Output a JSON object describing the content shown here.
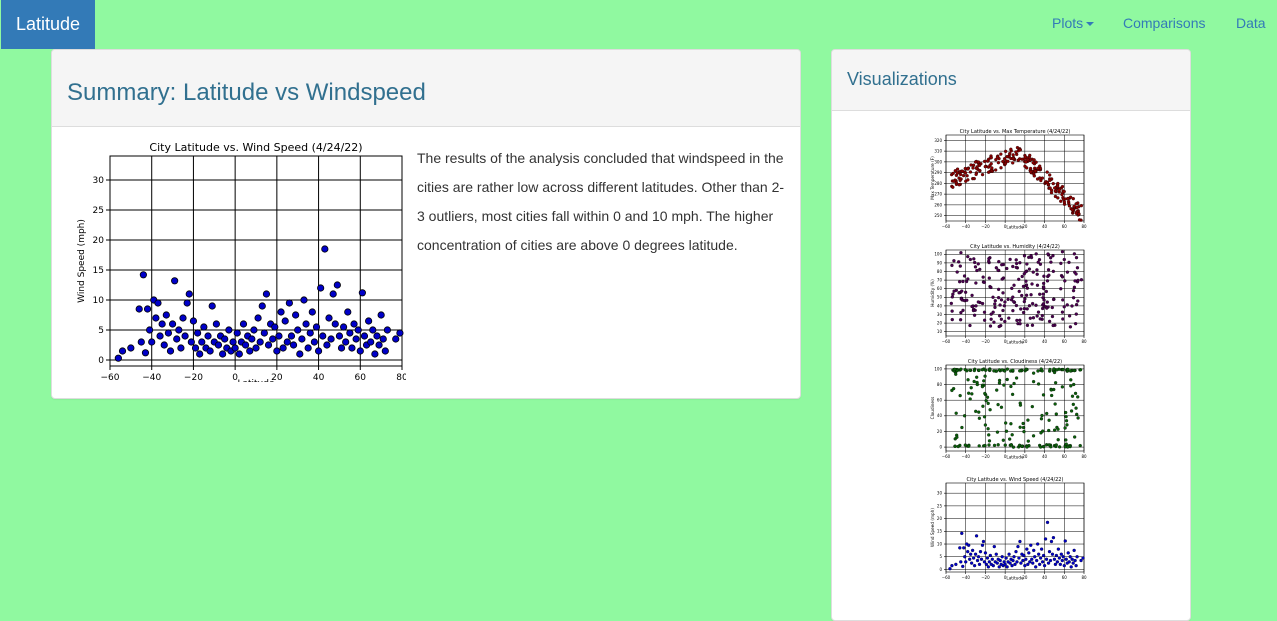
{
  "navbar": {
    "brand": "Latitude",
    "links": [
      {
        "label": "Plots",
        "dropdown": true
      },
      {
        "label": "Comparisons"
      },
      {
        "label": "Data"
      }
    ]
  },
  "summary": {
    "title": "Summary: Latitude vs Windspeed",
    "text": "The results of the analysis concluded that windspeed in the cities are rather low across different latitudes. Other than 2-3 outliers, most cities fall within 0 and 10 mph. The higher concentration of cities are above 0 degrees latitude."
  },
  "visualizations": {
    "title": "Visualizations"
  },
  "colors": {
    "background": "#90f9a0",
    "brand": "#337ab7",
    "heading_text": "#31708f",
    "temp_points": "#8b0000",
    "humidity_points": "#4b0050",
    "cloud_points": "#0b5f0b",
    "wind_points": "#0000c8"
  },
  "chart_data": [
    {
      "type": "scatter",
      "title": "City Latitude vs. Wind Speed (4/24/22)",
      "xlabel": "Latitude",
      "ylabel": "Wind Speed (mph)",
      "xlim": [
        -60,
        80
      ],
      "ylim": [
        -1,
        34
      ],
      "xticks": [
        -60,
        -40,
        -20,
        0,
        20,
        40,
        60,
        80
      ],
      "yticks": [
        0,
        5,
        10,
        15,
        20,
        25,
        30
      ],
      "grid": true,
      "points": [
        [
          -56,
          0.3
        ],
        [
          -54,
          1.5
        ],
        [
          -50,
          2
        ],
        [
          -46,
          8.5
        ],
        [
          -45,
          3
        ],
        [
          -44,
          14.2
        ],
        [
          -43,
          1.2
        ],
        [
          -42,
          8.5
        ],
        [
          -41,
          5
        ],
        [
          -40,
          3
        ],
        [
          -39,
          10
        ],
        [
          -38,
          7
        ],
        [
          -37,
          9.5
        ],
        [
          -36,
          4
        ],
        [
          -35,
          6
        ],
        [
          -34,
          2.5
        ],
        [
          -33,
          7.5
        ],
        [
          -32,
          4.5
        ],
        [
          -31,
          1.5
        ],
        [
          -30,
          6
        ],
        [
          -29,
          13.2
        ],
        [
          -28,
          3.5
        ],
        [
          -27,
          5
        ],
        [
          -26,
          2
        ],
        [
          -25,
          7
        ],
        [
          -24,
          4
        ],
        [
          -23,
          9.5
        ],
        [
          -22,
          11
        ],
        [
          -21,
          3
        ],
        [
          -20,
          6.5
        ],
        [
          -19,
          2
        ],
        [
          -18,
          4.5
        ],
        [
          -17,
          1
        ],
        [
          -16,
          3
        ],
        [
          -15,
          5.5
        ],
        [
          -14,
          2
        ],
        [
          -13,
          4
        ],
        [
          -12,
          1.5
        ],
        [
          -11,
          9
        ],
        [
          -10,
          3
        ],
        [
          -9,
          6
        ],
        [
          -8,
          2.5
        ],
        [
          -7,
          4
        ],
        [
          -6,
          1
        ],
        [
          -5,
          3.5
        ],
        [
          -4,
          2
        ],
        [
          -3,
          5
        ],
        [
          -2,
          1.5
        ],
        [
          -1,
          3
        ],
        [
          0,
          2
        ],
        [
          1,
          4.5
        ],
        [
          2,
          1
        ],
        [
          3,
          3
        ],
        [
          4,
          6
        ],
        [
          5,
          2.5
        ],
        [
          6,
          4
        ],
        [
          7,
          1.5
        ],
        [
          8,
          3.5
        ],
        [
          9,
          5
        ],
        [
          10,
          2
        ],
        [
          11,
          7
        ],
        [
          12,
          3
        ],
        [
          13,
          9
        ],
        [
          14,
          4.5
        ],
        [
          15,
          11
        ],
        [
          16,
          2.5
        ],
        [
          17,
          6
        ],
        [
          18,
          3.5
        ],
        [
          19,
          5.5
        ],
        [
          20,
          1.5
        ],
        [
          21,
          4
        ],
        [
          22,
          8
        ],
        [
          23,
          2
        ],
        [
          24,
          6.5
        ],
        [
          25,
          3
        ],
        [
          26,
          9.5
        ],
        [
          27,
          4
        ],
        [
          28,
          2.5
        ],
        [
          29,
          7.5
        ],
        [
          30,
          5
        ],
        [
          31,
          1
        ],
        [
          32,
          3.5
        ],
        [
          33,
          10
        ],
        [
          34,
          6
        ],
        [
          35,
          2
        ],
        [
          36,
          4.5
        ],
        [
          37,
          8
        ],
        [
          38,
          3
        ],
        [
          39,
          5.5
        ],
        [
          40,
          1.5
        ],
        [
          41,
          12
        ],
        [
          42,
          4
        ],
        [
          43,
          18.5
        ],
        [
          44,
          2.5
        ],
        [
          45,
          7
        ],
        [
          46,
          3.5
        ],
        [
          47,
          11
        ],
        [
          48,
          6
        ],
        [
          49,
          12.5
        ],
        [
          50,
          4
        ],
        [
          51,
          2
        ],
        [
          52,
          5.5
        ],
        [
          53,
          3
        ],
        [
          54,
          8
        ],
        [
          55,
          4.5
        ],
        [
          56,
          2
        ],
        [
          57,
          6
        ],
        [
          58,
          3.5
        ],
        [
          59,
          5
        ],
        [
          60,
          1.5
        ],
        [
          61,
          11.2
        ],
        [
          62,
          4
        ],
        [
          63,
          2.5
        ],
        [
          64,
          6.5
        ],
        [
          65,
          3
        ],
        [
          66,
          5
        ],
        [
          67,
          1
        ],
        [
          68,
          4
        ],
        [
          69,
          2.5
        ],
        [
          70,
          7.5
        ],
        [
          71,
          3.5
        ],
        [
          72,
          1.5
        ],
        [
          73,
          5
        ],
        [
          77,
          3.5
        ],
        [
          79,
          4.5
        ]
      ]
    },
    {
      "type": "scatter",
      "title": "City Latitude vs. Max Temperature (4/24/22)",
      "xlabel": "Latitude",
      "ylabel": "Max Temperature (F)",
      "xlim": [
        -60,
        80
      ],
      "ylim": [
        245,
        325
      ],
      "xticks": [
        -60,
        -40,
        -20,
        0,
        20,
        40,
        60,
        80
      ],
      "yticks": [
        250,
        260,
        270,
        280,
        290,
        300,
        310,
        320
      ],
      "grid": true
    },
    {
      "type": "scatter",
      "title": "City Latitude vs. Humidity (4/24/22)",
      "xlabel": "Latitude",
      "ylabel": "Humidity (%)",
      "xlim": [
        -60,
        80
      ],
      "ylim": [
        5,
        105
      ],
      "xticks": [
        -60,
        -40,
        -20,
        0,
        20,
        40,
        60,
        80
      ],
      "yticks": [
        10,
        20,
        30,
        40,
        50,
        60,
        70,
        80,
        90,
        100
      ],
      "grid": true
    },
    {
      "type": "scatter",
      "title": "City Latitude vs. Cloudiness (4/24/22)",
      "xlabel": "Latitude",
      "ylabel": "Cloudiness",
      "xlim": [
        -60,
        80
      ],
      "ylim": [
        -5,
        105
      ],
      "xticks": [
        -60,
        -40,
        -20,
        0,
        20,
        40,
        60,
        80
      ],
      "yticks": [
        0,
        20,
        40,
        60,
        80,
        100
      ],
      "grid": true
    },
    {
      "type": "scatter",
      "title": "City Latitude vs. Wind Speed (4/24/22)",
      "xlabel": "Latitude",
      "ylabel": "Wind Speed (mph)",
      "xlim": [
        -60,
        80
      ],
      "ylim": [
        -1,
        34
      ],
      "xticks": [
        -60,
        -40,
        -20,
        0,
        20,
        40,
        60,
        80
      ],
      "yticks": [
        0,
        5,
        10,
        15,
        20,
        25,
        30
      ],
      "grid": true
    }
  ]
}
